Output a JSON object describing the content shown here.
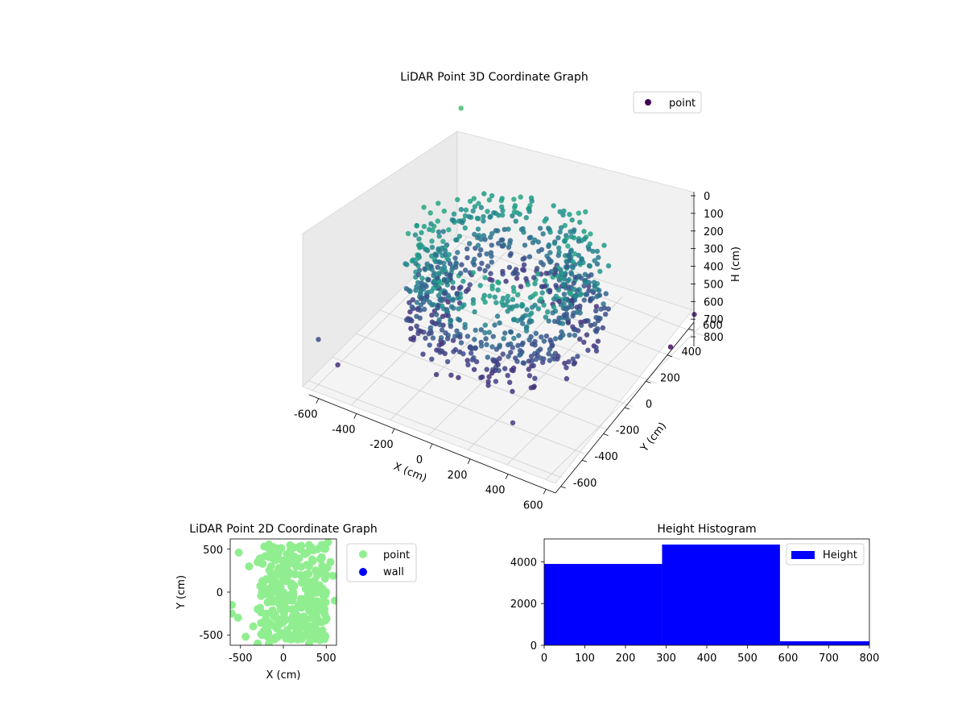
{
  "chart_data": [
    {
      "type": "scatter",
      "projection": "3d",
      "title": "LiDAR Point 3D Coordinate Graph",
      "xlabel": "X (cm)",
      "ylabel": "Y (cm)",
      "zlabel": "H (cm)",
      "xticks": [
        -600,
        -400,
        -200,
        0,
        200,
        400,
        600
      ],
      "yticks": [
        -600,
        -400,
        -200,
        0,
        200,
        400,
        600
      ],
      "zticks": [
        0,
        100,
        200,
        300,
        400,
        500,
        600,
        700,
        800
      ],
      "xlim": [
        -650,
        650
      ],
      "ylim": [
        -650,
        650
      ],
      "zlim": [
        0,
        850
      ],
      "z_axis_inverted": true,
      "grid": true,
      "legend": {
        "position": "top-right",
        "entries": [
          "point"
        ]
      },
      "colormap": "viridis (colored by height)",
      "series": [
        {
          "name": "point",
          "description": "Dense ring-shaped point cloud with outlying points; colour varies with height",
          "ring": {
            "center": [
              0,
              0
            ],
            "radius_range": [
              250,
              450
            ],
            "height_range": [
              200,
              700
            ]
          },
          "outliers": [
            {
              "x": -600,
              "y": -600,
              "h": 600
            },
            {
              "x": -500,
              "y": -600,
              "h": 700
            },
            {
              "x": 400,
              "y": -600,
              "h": 650
            },
            {
              "x": 600,
              "y": 600,
              "h": 750
            },
            {
              "x": 600,
              "y": 400,
              "h": 800
            },
            {
              "x": -600,
              "y": 600,
              "h": 100
            }
          ]
        }
      ]
    },
    {
      "type": "scatter",
      "title": "LiDAR Point 2D Coordinate Graph",
      "xlabel": "X (cm)",
      "ylabel": "Y (cm)",
      "xticks": [
        -500,
        0,
        500
      ],
      "yticks": [
        -500,
        0,
        500
      ],
      "xlim": [
        -620,
        620
      ],
      "ylim": [
        -620,
        620
      ],
      "legend": {
        "position": "outside-right",
        "entries": [
          "point",
          "wall"
        ]
      },
      "series": [
        {
          "name": "point",
          "color": "#90ee90",
          "description": "Dense blob of points spanning roughly x -350..550, y -600..600",
          "points": [
            [
              -520,
              460
            ],
            [
              -400,
              300
            ],
            [
              -300,
              350
            ],
            [
              -170,
              510
            ],
            [
              -160,
              500
            ],
            [
              -100,
              470
            ],
            [
              520,
              580
            ],
            [
              550,
              350
            ],
            [
              580,
              190
            ],
            [
              600,
              -100
            ],
            [
              -600,
              -150
            ],
            [
              -600,
              -250
            ],
            [
              -530,
              -300
            ],
            [
              -440,
              -520
            ],
            [
              -300,
              -600
            ],
            [
              -170,
              -600
            ],
            [
              300,
              -600
            ],
            [
              320,
              -450
            ],
            [
              480,
              -550
            ],
            [
              -100,
              200
            ],
            [
              0,
              300
            ],
            [
              100,
              400
            ],
            [
              200,
              500
            ],
            [
              300,
              550
            ],
            [
              400,
              500
            ],
            [
              450,
              400
            ],
            [
              500,
              200
            ],
            [
              500,
              0
            ],
            [
              480,
              -200
            ],
            [
              450,
              -350
            ],
            [
              400,
              -450
            ],
            [
              300,
              -500
            ],
            [
              100,
              -550
            ],
            [
              -100,
              -550
            ],
            [
              -250,
              -500
            ],
            [
              -350,
              -400
            ],
            [
              -300,
              -200
            ],
            [
              -250,
              0
            ],
            [
              -200,
              150
            ],
            [
              0,
              0
            ],
            [
              100,
              100
            ],
            [
              200,
              200
            ],
            [
              300,
              100
            ],
            [
              200,
              -100
            ],
            [
              100,
              -200
            ],
            [
              0,
              -300
            ],
            [
              -100,
              -400
            ],
            [
              150,
              300
            ],
            [
              250,
              -300
            ],
            [
              350,
              -200
            ],
            [
              400,
              0
            ],
            [
              300,
              300
            ],
            [
              -50,
              100
            ],
            [
              50,
              -100
            ]
          ]
        },
        {
          "name": "wall",
          "color": "#0000ff",
          "points": []
        }
      ]
    },
    {
      "type": "bar",
      "subtype": "histogram",
      "title": "Height Histogram",
      "xlabel": "",
      "ylabel": "",
      "xticks": [
        0,
        100,
        200,
        300,
        400,
        500,
        600,
        700,
        800
      ],
      "yticks": [
        0,
        2000,
        4000
      ],
      "xlim": [
        0,
        800
      ],
      "ylim": [
        0,
        5100
      ],
      "legend": {
        "position": "top-right",
        "entries": [
          "Height"
        ]
      },
      "series": [
        {
          "name": "Height",
          "color": "#0000ff",
          "bins": [
            {
              "from": 0,
              "to": 290,
              "count": 3900
            },
            {
              "from": 290,
              "to": 580,
              "count": 4830
            },
            {
              "from": 580,
              "to": 870,
              "count": 190
            }
          ]
        }
      ]
    }
  ]
}
